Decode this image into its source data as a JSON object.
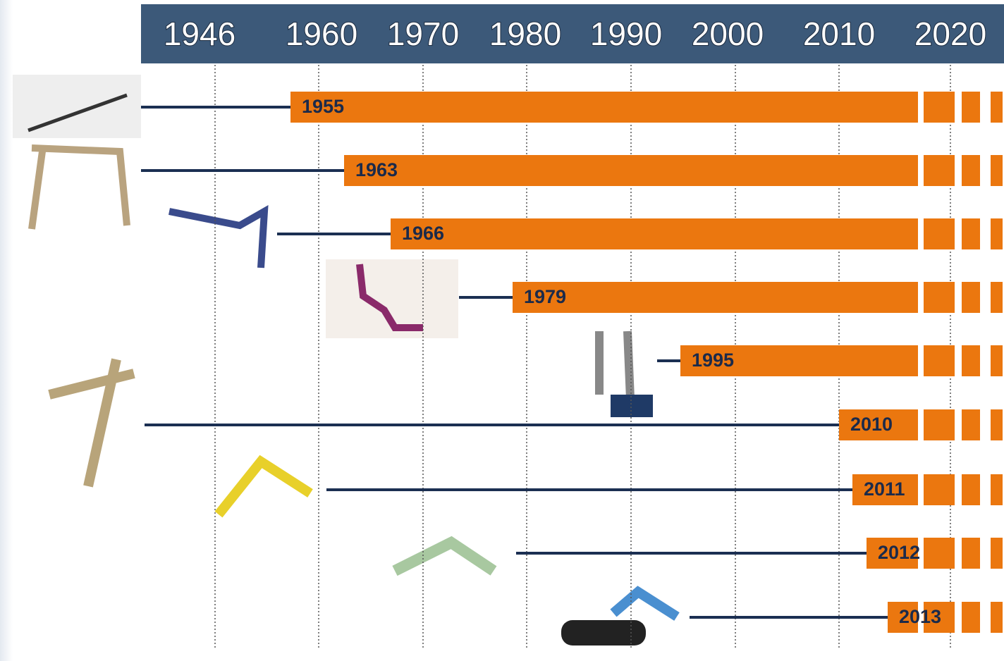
{
  "header": {
    "years": [
      "1946",
      "1960",
      "1970",
      "1980",
      "1990",
      "2000",
      "2010",
      "2020"
    ]
  },
  "bars": [
    {
      "label": "1955"
    },
    {
      "label": "1963"
    },
    {
      "label": "1966"
    },
    {
      "label": "1979"
    },
    {
      "label": "1995"
    },
    {
      "label": "2010"
    },
    {
      "label": "2011"
    },
    {
      "label": "2012"
    },
    {
      "label": "2013"
    }
  ]
}
